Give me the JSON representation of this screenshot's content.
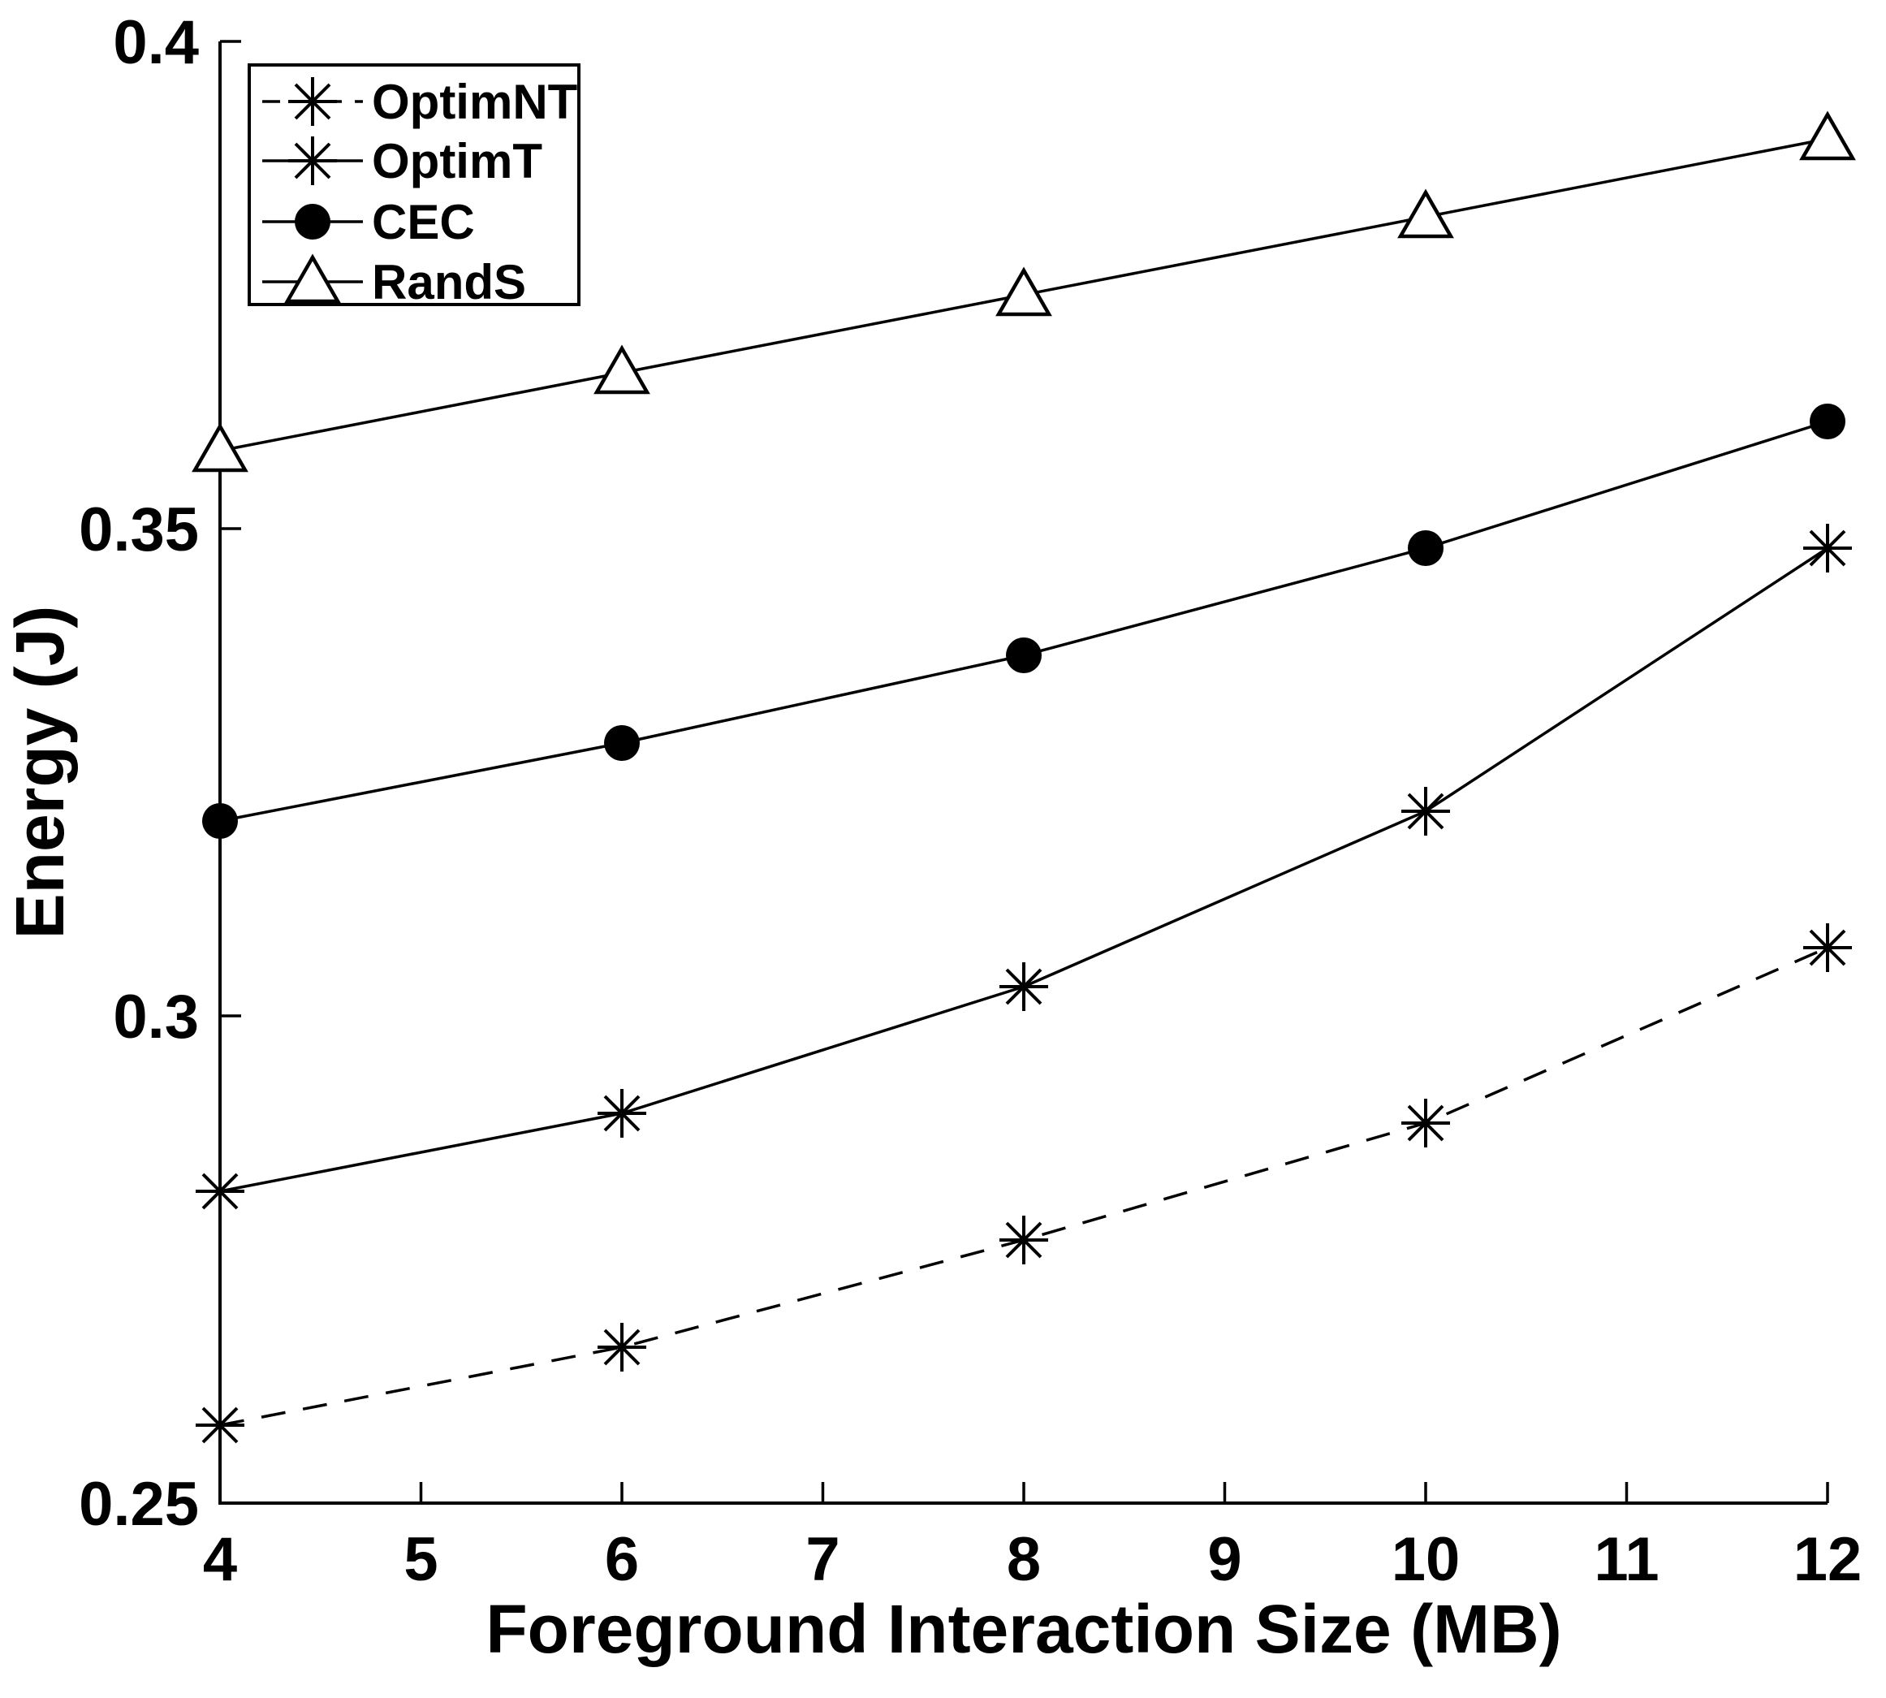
{
  "chart_data": {
    "type": "line",
    "title": "",
    "xlabel": "Foreground Interaction Size (MB)",
    "ylabel": "Energy (J)",
    "x": [
      4,
      6,
      8,
      10,
      12
    ],
    "series": [
      {
        "name": "OptimNT",
        "values": [
          0.258,
          0.266,
          0.277,
          0.289,
          0.307
        ],
        "line": "dashed",
        "marker": "asterisk"
      },
      {
        "name": "OptimT",
        "values": [
          0.282,
          0.29,
          0.303,
          0.321,
          0.348
        ],
        "line": "solid",
        "marker": "asterisk"
      },
      {
        "name": "CEC",
        "values": [
          0.32,
          0.328,
          0.337,
          0.348,
          0.361
        ],
        "line": "solid",
        "marker": "filled-circle"
      },
      {
        "name": "RandS",
        "values": [
          0.358,
          0.366,
          0.374,
          0.382,
          0.39
        ],
        "line": "solid",
        "marker": "open-triangle"
      }
    ],
    "xlim": [
      4,
      12
    ],
    "ylim": [
      0.25,
      0.4
    ],
    "xticks": [
      "4",
      "5",
      "6",
      "7",
      "8",
      "9",
      "10",
      "11",
      "12"
    ],
    "yticks": [
      "0.25",
      "0.3",
      "0.35",
      "0.4"
    ],
    "legend_position": "top-left",
    "grid": false,
    "axis_color": "#000000",
    "series_color": "#000000",
    "background_color": "#ffffff"
  }
}
